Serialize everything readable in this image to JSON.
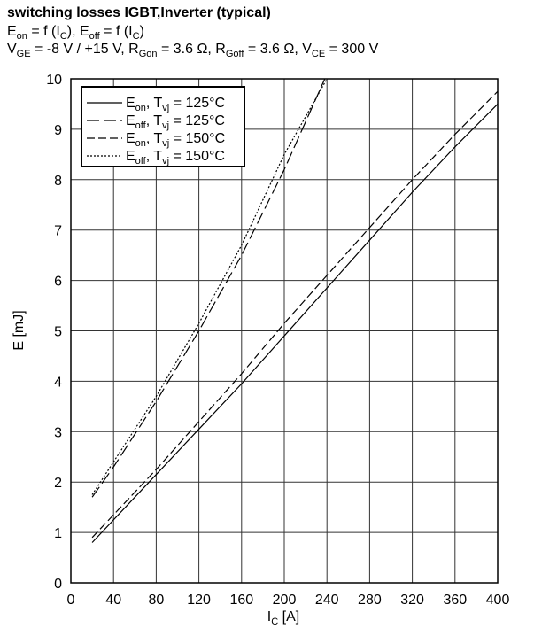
{
  "chart_data": {
    "type": "line",
    "title": "switching losses IGBT,Inverter (typical)",
    "subtitle": [
      "E",
      {
        "sub": "on"
      },
      " = f (I",
      {
        "sub": "C"
      },
      "), E",
      {
        "sub": "off"
      },
      " = f (I",
      {
        "sub": "C"
      },
      ")"
    ],
    "conditions": [
      "V",
      {
        "sub": "GE"
      },
      " = -8 V / +15 V, R",
      {
        "sub": "Gon"
      },
      " = 3.6 Ω, R",
      {
        "sub": "Goff"
      },
      " = 3.6 Ω, V",
      {
        "sub": "CE"
      },
      " = 300 V"
    ],
    "x_label": [
      "I",
      {
        "sub": "C"
      },
      " [A]"
    ],
    "y_label": "E [mJ]",
    "xlim": [
      0,
      400
    ],
    "xticks": [
      0,
      40,
      80,
      120,
      160,
      200,
      240,
      280,
      320,
      360,
      400
    ],
    "ylim": [
      0,
      10
    ],
    "yticks": [
      0,
      1,
      2,
      3,
      4,
      5,
      6,
      7,
      8,
      9,
      10
    ],
    "grid": true,
    "legend": "upper-left",
    "series": [
      {
        "name": [
          "E",
          {
            "sub": "on"
          },
          ", T",
          {
            "sub": "vj"
          },
          " = 125°C"
        ],
        "color": "#000000",
        "dash": [],
        "x": [
          20,
          80,
          120,
          160,
          200,
          240,
          280,
          320,
          360,
          400
        ],
        "values": [
          0.8,
          2.15,
          3.05,
          3.95,
          4.9,
          5.85,
          6.8,
          7.75,
          8.65,
          9.5
        ]
      },
      {
        "name": [
          "E",
          {
            "sub": "off"
          },
          ", T",
          {
            "sub": "vj"
          },
          " = 125°C"
        ],
        "color": "#000000",
        "dash": [
          14,
          5
        ],
        "x": [
          20,
          40,
          80,
          120,
          160,
          200,
          238
        ],
        "values": [
          1.7,
          2.3,
          3.6,
          5.0,
          6.5,
          8.2,
          10
        ]
      },
      {
        "name": [
          "E",
          {
            "sub": "on"
          },
          ", T",
          {
            "sub": "vj"
          },
          " = 150°C"
        ],
        "color": "#000000",
        "dash": [
          9,
          4
        ],
        "x": [
          20,
          80,
          120,
          160,
          200,
          240,
          280,
          320,
          360,
          400
        ],
        "values": [
          0.9,
          2.25,
          3.2,
          4.15,
          5.15,
          6.1,
          7.05,
          8.0,
          8.9,
          9.75
        ]
      },
      {
        "name": [
          "E",
          {
            "sub": "off"
          },
          ", T",
          {
            "sub": "vj"
          },
          " = 150°C"
        ],
        "color": "#000000",
        "dash": [
          2,
          2
        ],
        "x": [
          20,
          40,
          80,
          120,
          160,
          200,
          240
        ],
        "values": [
          1.75,
          2.4,
          3.7,
          5.15,
          6.7,
          8.5,
          10
        ]
      }
    ]
  }
}
